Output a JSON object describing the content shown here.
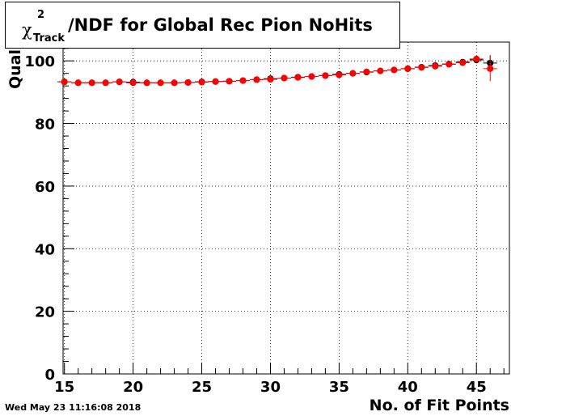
{
  "chart_data": {
    "type": "scatter",
    "title": {
      "symbol": "χ",
      "superscript": "2",
      "subscript": "Track",
      "text": "/NDF for Global Rec Pion NoHits"
    },
    "xlabel": "No. of Fit Points",
    "ylabel": "Quality",
    "xlim": [
      14.9,
      47.4
    ],
    "ylim": [
      0,
      106
    ],
    "x_ticks": [
      15,
      20,
      25,
      30,
      35,
      40,
      45
    ],
    "y_ticks": [
      0,
      20,
      40,
      60,
      80,
      100
    ],
    "grid": true,
    "series": [
      {
        "marker": "circle",
        "color": "#000000",
        "x": [
          15,
          16,
          17,
          18,
          19,
          20,
          21,
          22,
          23,
          24,
          25,
          26,
          27,
          28,
          29,
          30,
          31,
          32,
          33,
          34,
          35,
          36,
          37,
          38,
          39,
          40,
          41,
          42,
          43,
          44,
          45,
          46
        ],
        "y": [
          93.3,
          93.0,
          93.0,
          93.0,
          93.3,
          93.2,
          93.0,
          93.0,
          93.0,
          93.1,
          93.3,
          93.4,
          93.5,
          93.7,
          94.0,
          94.3,
          94.5,
          94.8,
          95.0,
          95.3,
          95.7,
          96.0,
          96.4,
          96.8,
          97.1,
          97.5,
          98.0,
          98.5,
          99.0,
          99.6,
          100.3,
          99.3
        ],
        "yerr": [
          0.4,
          0.4,
          0.4,
          0.4,
          0.4,
          0.4,
          0.4,
          0.4,
          0.4,
          0.4,
          0.4,
          0.4,
          0.4,
          0.4,
          0.4,
          0.4,
          0.4,
          0.4,
          0.4,
          0.4,
          0.4,
          0.4,
          0.4,
          0.4,
          0.4,
          0.4,
          0.4,
          0.4,
          0.4,
          0.5,
          1.0,
          2.5
        ]
      },
      {
        "marker": "circle",
        "color": "#ff0000",
        "x": [
          15,
          16,
          17,
          18,
          19,
          20,
          21,
          22,
          23,
          24,
          25,
          26,
          27,
          28,
          29,
          30,
          31,
          32,
          33,
          34,
          35,
          36,
          37,
          38,
          39,
          40,
          41,
          42,
          43,
          44,
          45,
          46
        ],
        "y": [
          93.3,
          93.0,
          93.0,
          93.0,
          93.3,
          93.0,
          93.0,
          93.0,
          93.0,
          93.1,
          93.2,
          93.4,
          93.5,
          93.7,
          94.0,
          94.1,
          94.5,
          94.7,
          95.0,
          95.3,
          95.5,
          96.0,
          96.5,
          96.8,
          97.1,
          97.5,
          97.9,
          98.3,
          98.9,
          99.4,
          100.6,
          97.5
        ],
        "yerr": [
          0.4,
          0.4,
          0.4,
          0.4,
          0.4,
          0.4,
          0.4,
          0.4,
          0.4,
          0.4,
          0.4,
          0.4,
          0.4,
          0.4,
          0.4,
          0.4,
          0.4,
          0.4,
          0.4,
          0.4,
          0.4,
          0.4,
          0.4,
          0.4,
          0.4,
          0.4,
          0.4,
          0.4,
          0.4,
          0.5,
          1.0,
          4.0
        ]
      }
    ]
  },
  "timestamp": "Wed May 23 11:16:08 2018"
}
